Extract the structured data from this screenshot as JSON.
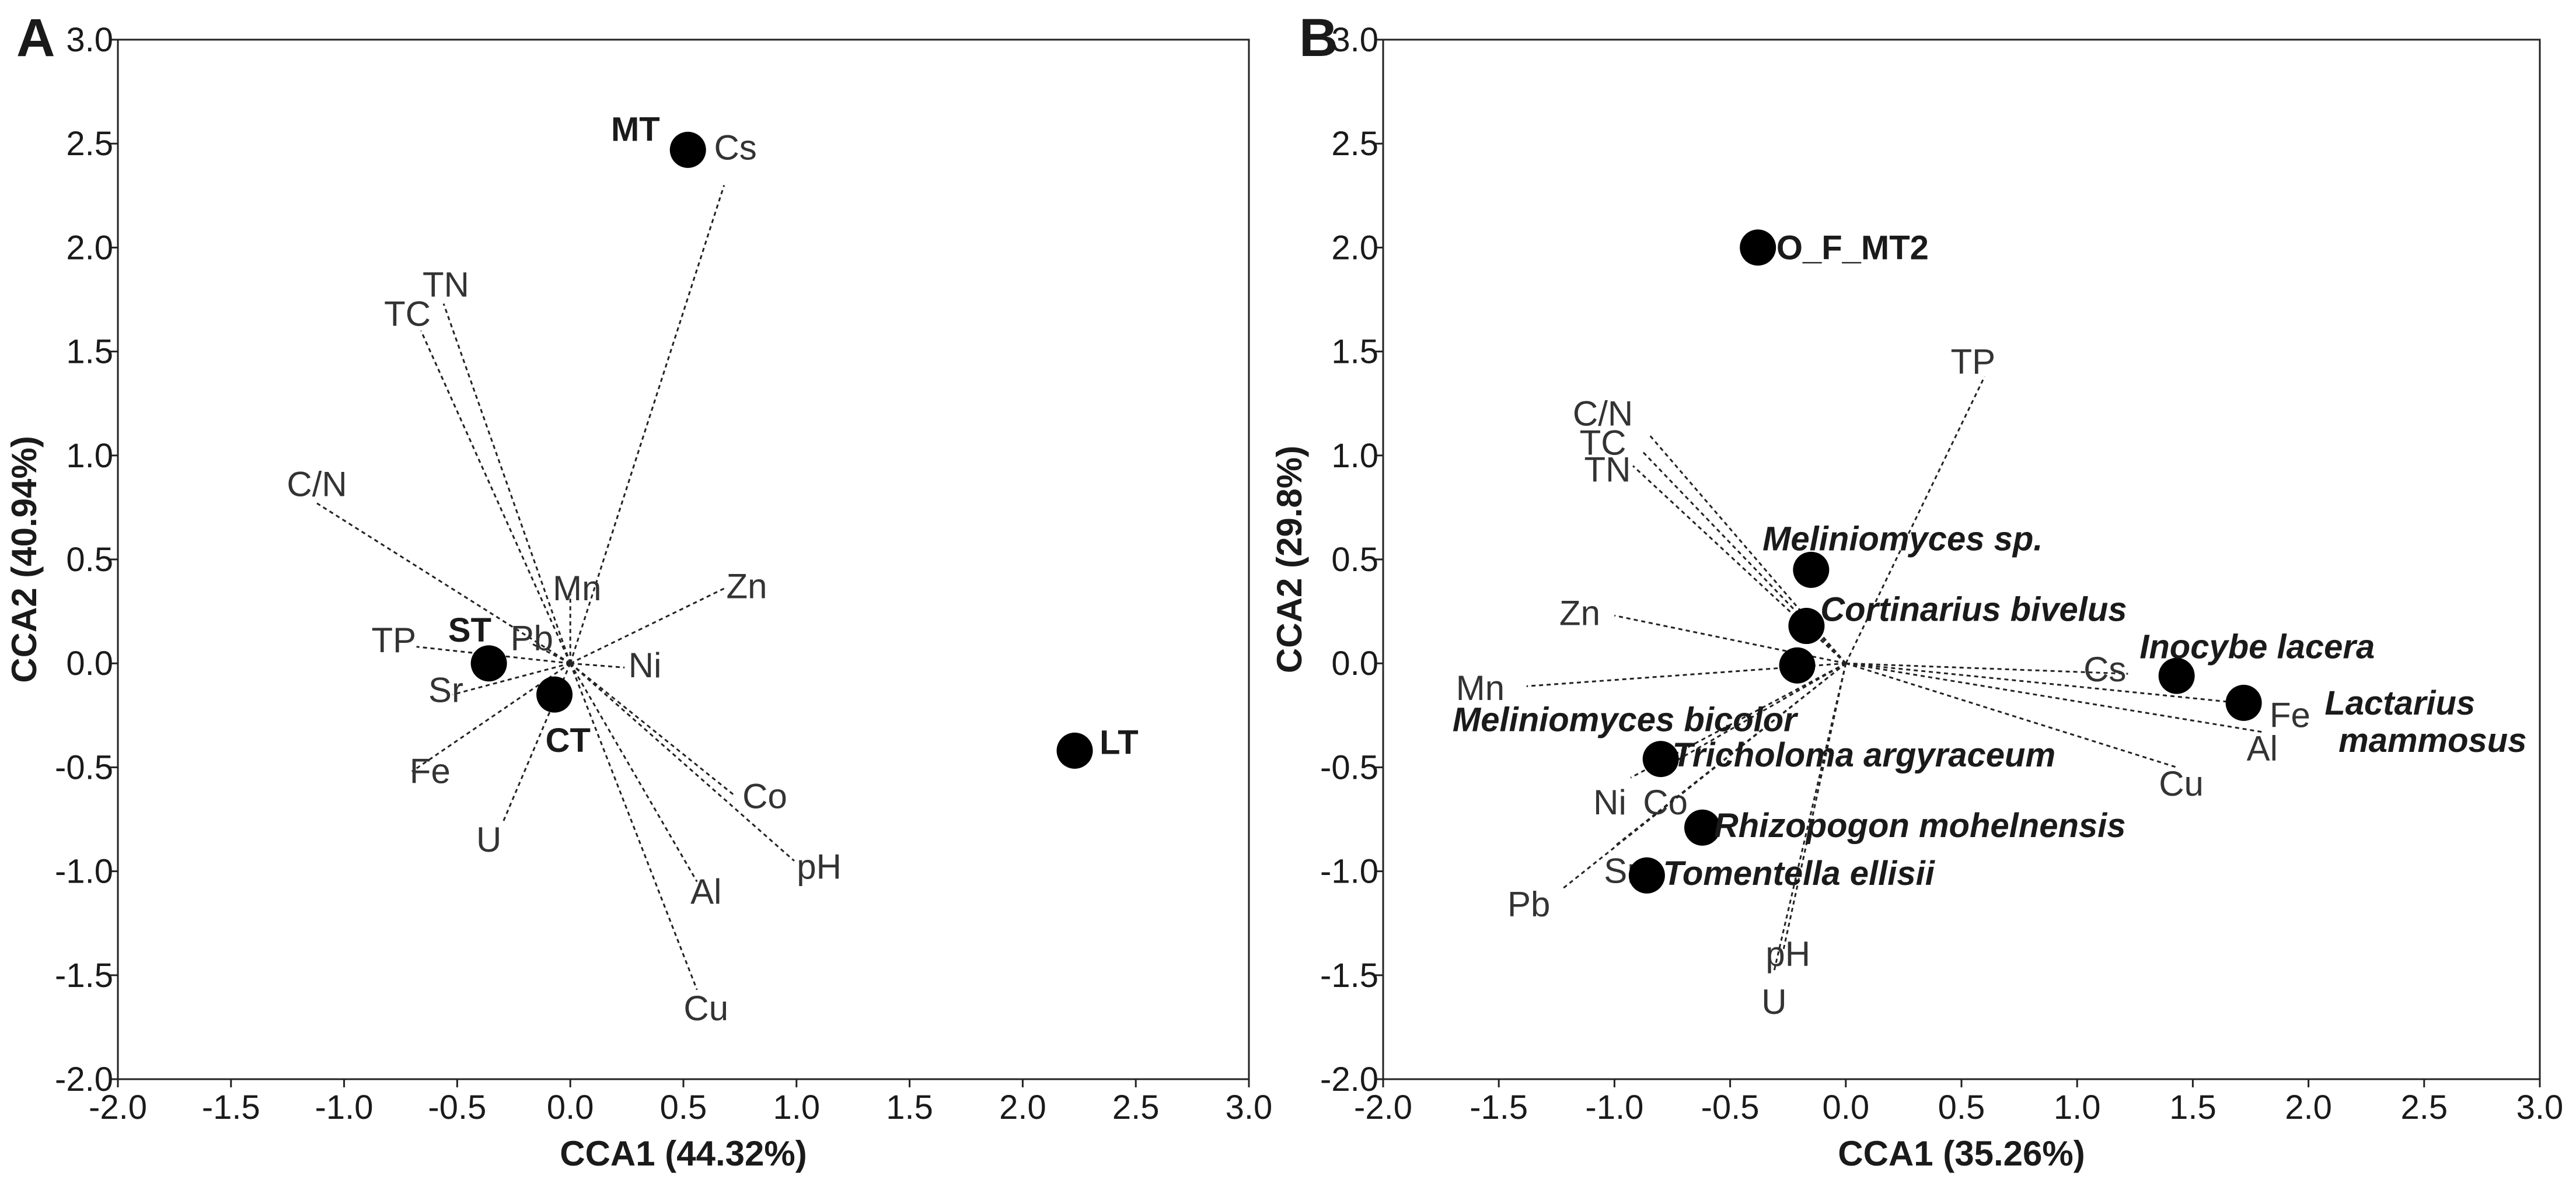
{
  "chart_data": [
    {
      "panel": "A",
      "type": "scatter",
      "xlabel": "CCA1 (44.32%)",
      "ylabel": "CCA2 (40.94%)",
      "xlim": [
        -2.0,
        3.0
      ],
      "ylim": [
        -2.0,
        3.0
      ],
      "xticks": [
        "-2.0",
        "-1.5",
        "-1.0",
        "-0.5",
        "0.0",
        "0.5",
        "1.0",
        "1.5",
        "2.0",
        "2.5",
        "3.0"
      ],
      "yticks": [
        "-2.0",
        "-1.5",
        "-1.0",
        "-0.5",
        "0.0",
        "0.5",
        "1.0",
        "1.5",
        "2.0",
        "2.5",
        "3.0"
      ],
      "vector_origin": [
        0.0,
        0.0
      ],
      "vectors": [
        {
          "name": "Cs",
          "x": 0.68,
          "y": 2.3,
          "label_x": 0.73,
          "label_y": 2.48
        },
        {
          "name": "TN",
          "x": -0.56,
          "y": 1.73,
          "label_x": -0.55,
          "label_y": 1.82
        },
        {
          "name": "TC",
          "x": -0.66,
          "y": 1.6,
          "label_x": -0.72,
          "label_y": 1.68
        },
        {
          "name": "C/N",
          "x": -1.12,
          "y": 0.77,
          "label_x": -1.12,
          "label_y": 0.86
        },
        {
          "name": "Mn",
          "x": 0.0,
          "y": 0.36,
          "label_x": 0.03,
          "label_y": 0.36
        },
        {
          "name": "Zn",
          "x": 0.68,
          "y": 0.36,
          "label_x": 0.78,
          "label_y": 0.37
        },
        {
          "name": "Pb",
          "x": -0.18,
          "y": 0.1,
          "label_x": -0.17,
          "label_y": 0.12
        },
        {
          "name": "Ni",
          "x": 0.24,
          "y": -0.02,
          "label_x": 0.33,
          "label_y": -0.01
        },
        {
          "name": "TP",
          "x": -0.68,
          "y": 0.08,
          "label_x": -0.78,
          "label_y": 0.11
        },
        {
          "name": "Sr",
          "x": -0.52,
          "y": -0.15,
          "label_x": -0.55,
          "label_y": -0.13
        },
        {
          "name": "Fe",
          "x": -0.7,
          "y": -0.52,
          "label_x": -0.62,
          "label_y": -0.52
        },
        {
          "name": "Co",
          "x": 0.72,
          "y": -0.63,
          "label_x": 0.86,
          "label_y": -0.64
        },
        {
          "name": "U",
          "x": -0.3,
          "y": -0.77,
          "label_x": -0.36,
          "label_y": -0.85
        },
        {
          "name": "pH",
          "x": 0.99,
          "y": -0.95,
          "label_x": 1.1,
          "label_y": -0.98
        },
        {
          "name": "Al",
          "x": 0.56,
          "y": -1.05,
          "label_x": 0.6,
          "label_y": -1.1
        },
        {
          "name": "Cu",
          "x": 0.56,
          "y": -1.57,
          "label_x": 0.6,
          "label_y": -1.66
        }
      ],
      "points": [
        {
          "name": "MT",
          "x": 0.52,
          "y": 2.47,
          "label_x": 0.18,
          "label_y": 2.57,
          "anchor": "start"
        },
        {
          "name": "ST",
          "x": -0.36,
          "y": 0.0,
          "label_x": -0.54,
          "label_y": 0.16,
          "anchor": "start"
        },
        {
          "name": "CT",
          "x": -0.07,
          "y": -0.15,
          "label_x": -0.11,
          "label_y": -0.37,
          "anchor": "start"
        },
        {
          "name": "LT",
          "x": 2.23,
          "y": -0.42,
          "label_x": 2.34,
          "label_y": -0.38,
          "anchor": "start"
        }
      ]
    },
    {
      "panel": "B",
      "type": "scatter",
      "xlabel": "CCA1 (35.26%)",
      "ylabel": "CCA2 (29.8%)",
      "xlim": [
        -2.0,
        3.0
      ],
      "ylim": [
        -2.0,
        3.0
      ],
      "xticks": [
        "-2.0",
        "-1.5",
        "-1.0",
        "-0.5",
        "0.0",
        "0.5",
        "1.0",
        "1.5",
        "2.0",
        "2.5",
        "3.0"
      ],
      "yticks": [
        "-2.0",
        "-1.5",
        "-1.0",
        "-0.5",
        "0.0",
        "0.5",
        "1.0",
        "1.5",
        "2.0",
        "2.5",
        "3.0"
      ],
      "vector_origin": [
        0.0,
        0.0
      ],
      "vectors": [
        {
          "name": "TP",
          "x": 0.6,
          "y": 1.38,
          "label_x": 0.55,
          "label_y": 1.45
        },
        {
          "name": "C/N",
          "x": -0.85,
          "y": 1.1,
          "label_x": -1.05,
          "label_y": 1.2
        },
        {
          "name": "TC",
          "x": -0.88,
          "y": 1.02,
          "label_x": -1.05,
          "label_y": 1.06
        },
        {
          "name": "TN",
          "x": -0.92,
          "y": 0.95,
          "label_x": -1.03,
          "label_y": 0.93
        },
        {
          "name": "Zn",
          "x": -1.0,
          "y": 0.23,
          "label_x": -1.15,
          "label_y": 0.24
        },
        {
          "name": "Mn",
          "x": -1.38,
          "y": -0.11,
          "label_x": -1.58,
          "label_y": -0.12
        },
        {
          "name": "Cs",
          "x": 1.22,
          "y": -0.05,
          "label_x": 1.12,
          "label_y": -0.03
        },
        {
          "name": "Fe",
          "x": 1.79,
          "y": -0.2,
          "label_x": 1.92,
          "label_y": -0.25
        },
        {
          "name": "Al",
          "x": 1.8,
          "y": -0.33,
          "label_x": 1.8,
          "label_y": -0.41
        },
        {
          "name": "Cu",
          "x": 1.43,
          "y": -0.5,
          "label_x": 1.45,
          "label_y": -0.58
        },
        {
          "name": "Co",
          "x": -0.83,
          "y": -0.53,
          "label_x": -0.78,
          "label_y": -0.67
        },
        {
          "name": "Ni",
          "x": -0.93,
          "y": -0.55,
          "label_x": -1.02,
          "label_y": -0.67
        },
        {
          "name": "Sr",
          "x": -1.0,
          "y": -0.88,
          "label_x": -0.97,
          "label_y": -1.0
        },
        {
          "name": "Pb",
          "x": -1.22,
          "y": -1.08,
          "label_x": -1.37,
          "label_y": -1.16
        },
        {
          "name": "pH",
          "x": -0.27,
          "y": -1.38,
          "label_x": -0.25,
          "label_y": -1.4
        },
        {
          "name": "U",
          "x": -0.31,
          "y": -1.48,
          "label_x": -0.31,
          "label_y": -1.63
        }
      ],
      "points": [
        {
          "name": "O_F_MT2",
          "x": -0.38,
          "y": 2.0,
          "label_x": -0.3,
          "label_y": 2.0,
          "anchor": "start"
        },
        {
          "name": "Meliniomyces sp.",
          "x": -0.15,
          "y": 0.45,
          "label_x": -0.36,
          "label_y": 0.6,
          "anchor": "start"
        },
        {
          "name": "Cortinarius bivelus",
          "x": -0.17,
          "y": 0.18,
          "label_x": -0.11,
          "label_y": 0.26,
          "anchor": "start"
        },
        {
          "name": "Inocybe lacera",
          "x": 1.43,
          "y": -0.06,
          "label_x": 1.27,
          "label_y": 0.08,
          "anchor": "start"
        },
        {
          "name": "Lactarius",
          "x": 1.72,
          "y": -0.19,
          "label_x": 2.07,
          "label_y": -0.19,
          "anchor": "start"
        },
        {
          "name": "mammosus",
          "x": null,
          "y": null,
          "label_x": 2.13,
          "label_y": -0.37,
          "anchor": "start"
        },
        {
          "name": "",
          "x": -0.21,
          "y": -0.01,
          "label_x": null,
          "label_y": null,
          "anchor": "start"
        },
        {
          "name": "Meliniomyces bicolor",
          "x": null,
          "y": null,
          "label_x": -1.7,
          "label_y": -0.27,
          "anchor": "start"
        },
        {
          "name": "Tricholoma argyraceum",
          "x": -0.8,
          "y": -0.46,
          "label_x": -0.75,
          "label_y": -0.44,
          "anchor": "start"
        },
        {
          "name": "Rhizopogon mohelnensis",
          "x": -0.62,
          "y": -0.79,
          "label_x": -0.57,
          "label_y": -0.78,
          "anchor": "start"
        },
        {
          "name": "Tomentella ellisii",
          "x": -0.86,
          "y": -1.02,
          "label_x": -0.79,
          "label_y": -1.01,
          "anchor": "start"
        }
      ]
    }
  ]
}
